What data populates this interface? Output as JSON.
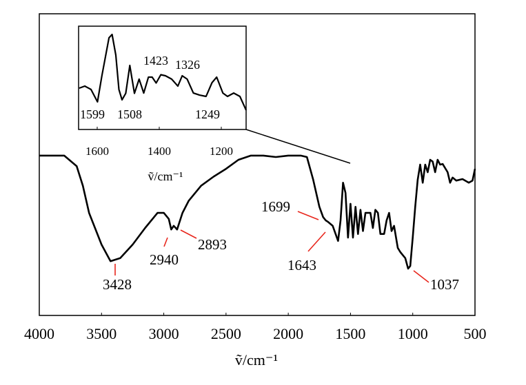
{
  "chart_data": [
    {
      "type": "line",
      "x_label": "ṽ/cm⁻¹",
      "color": "#000000",
      "grid": false,
      "xlim": [
        4000,
        500
      ],
      "xticks": [
        4000,
        3500,
        3000,
        2500,
        2000,
        1500,
        1000,
        500
      ],
      "ylim": [
        0,
        100
      ],
      "x": [
        4000,
        3800,
        3700,
        3650,
        3600,
        3500,
        3428,
        3350,
        3250,
        3150,
        3050,
        3000,
        2960,
        2940,
        2920,
        2893,
        2850,
        2800,
        2700,
        2600,
        2500,
        2400,
        2300,
        2200,
        2100,
        2000,
        1900,
        1850,
        1800,
        1750,
        1720,
        1699,
        1680,
        1643,
        1620,
        1600,
        1580,
        1560,
        1540,
        1520,
        1500,
        1480,
        1460,
        1440,
        1420,
        1400,
        1380,
        1340,
        1320,
        1300,
        1280,
        1260,
        1230,
        1210,
        1190,
        1170,
        1150,
        1120,
        1100,
        1080,
        1060,
        1037,
        1020,
        1000,
        980,
        960,
        940,
        920,
        900,
        880,
        860,
        840,
        820,
        800,
        780,
        760,
        720,
        700,
        680,
        650,
        600,
        550,
        520,
        500
      ],
      "values": [
        53,
        53,
        49.5,
        43,
        34,
        23.5,
        18,
        19,
        23.5,
        29,
        34,
        34,
        32,
        28.5,
        29.7,
        28.5,
        34,
        38,
        43,
        46,
        48.6,
        51.6,
        53,
        53,
        52.5,
        53,
        53,
        52.5,
        45,
        36,
        32.6,
        31.5,
        31,
        29.7,
        27,
        24.7,
        31.5,
        44,
        40.6,
        25.8,
        37,
        25.8,
        36,
        27,
        35,
        28,
        34,
        34,
        29,
        35,
        34,
        27,
        27,
        31.5,
        34,
        28,
        29.7,
        22.4,
        21,
        20,
        19,
        15.5,
        16.4,
        25.8,
        36,
        45,
        50,
        44,
        50,
        47.5,
        51.6,
        51,
        47.5,
        51.6,
        50,
        50.2,
        47.5,
        44,
        45.7,
        44.7,
        45.2,
        44,
        44.7,
        48.6
      ],
      "annotations": [
        "3428",
        "2940",
        "2893",
        "1699",
        "1643",
        "1037"
      ]
    },
    {
      "type": "line",
      "x_label": "ṽ/cm⁻¹",
      "color": "#000000",
      "grid": false,
      "xlim": [
        1660,
        1120
      ],
      "xticks": [
        1600,
        1400,
        1200
      ],
      "ylim": [
        0,
        100
      ],
      "x": [
        1658,
        1640,
        1620,
        1599,
        1585,
        1562,
        1552,
        1540,
        1530,
        1520,
        1508,
        1495,
        1480,
        1465,
        1450,
        1435,
        1423,
        1410,
        1395,
        1380,
        1360,
        1340,
        1326,
        1310,
        1290,
        1270,
        1249,
        1230,
        1215,
        1195,
        1180,
        1160,
        1140,
        1120
      ],
      "values": [
        40,
        42,
        38.7,
        26.7,
        52,
        88.7,
        92,
        72,
        38.7,
        28.7,
        35,
        62,
        35,
        48.7,
        35.3,
        50.7,
        50.7,
        45,
        53,
        52,
        48.7,
        42,
        52,
        48.7,
        35.3,
        33.3,
        32,
        45.3,
        50.7,
        35.3,
        32,
        35.3,
        32,
        18.7
      ],
      "annotations": [
        "1599",
        "1508",
        "1423",
        "1326",
        "1249"
      ]
    }
  ]
}
